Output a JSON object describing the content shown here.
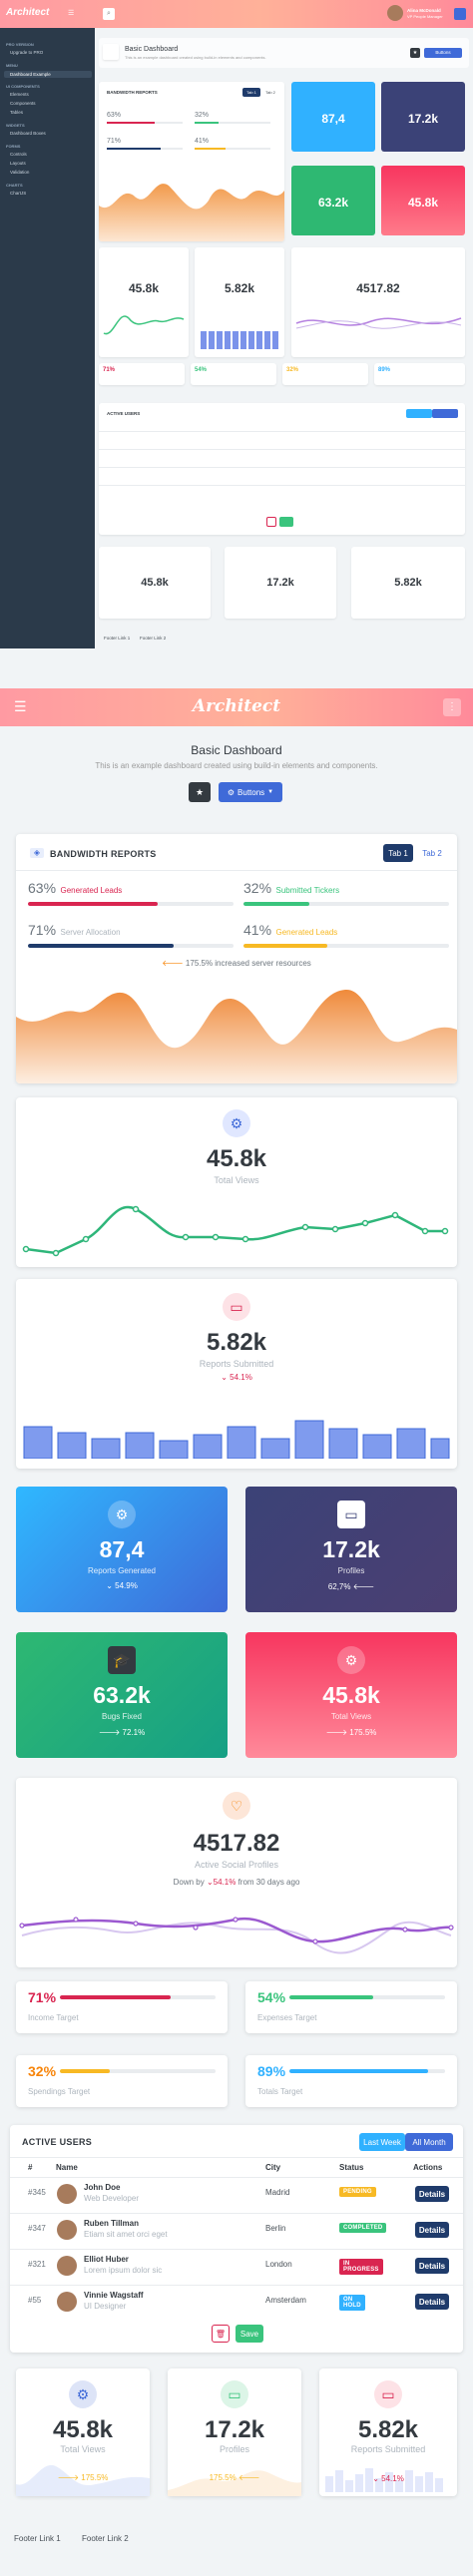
{
  "brand": {
    "logo": "Architect"
  },
  "page": {
    "title": "Basic Dashboard",
    "subtitle": "This is an example dashboard created using build-in elements and components.",
    "buttons_label": "Buttons"
  },
  "desktop": {
    "user_name": "Alina McDonald",
    "user_role": "VP People Manager",
    "sidebar": [
      {
        "type": "section",
        "label": "PRO VERSION"
      },
      {
        "type": "item",
        "label": "Upgrade to PRO"
      },
      {
        "type": "section",
        "label": "MENU"
      },
      {
        "type": "item",
        "label": "Dashboard Example",
        "active": true
      },
      {
        "type": "section",
        "label": "UI COMPONENTS"
      },
      {
        "type": "item",
        "label": "Elements"
      },
      {
        "type": "item",
        "label": "Components"
      },
      {
        "type": "item",
        "label": "Tables"
      },
      {
        "type": "section",
        "label": "WIDGETS"
      },
      {
        "type": "item",
        "label": "Dashboard Boxes"
      },
      {
        "type": "section",
        "label": "FORMS"
      },
      {
        "type": "item",
        "label": "Controls"
      },
      {
        "type": "item",
        "label": "Layouts"
      },
      {
        "type": "item",
        "label": "Validation"
      },
      {
        "type": "section",
        "label": "CHARTS"
      },
      {
        "type": "item",
        "label": "ChartJS"
      }
    ]
  },
  "bandwidth": {
    "title": "BANDWIDTH REPORTS",
    "tabs": [
      "Tab 1",
      "Tab 2"
    ],
    "stats": [
      {
        "pct": "63%",
        "label": "Generated Leads",
        "value": 63,
        "color": "#d92550"
      },
      {
        "pct": "32%",
        "label": "Submitted Tickers",
        "value": 32,
        "color": "#3ac47d"
      },
      {
        "pct": "71%",
        "label": "Server Allocation",
        "value": 71,
        "color": "#1f3b6b"
      },
      {
        "pct": "41%",
        "label": "Generated Leads",
        "value": 41,
        "color": "#f7b924"
      }
    ],
    "note": "175.5% increased server resources"
  },
  "total_views": {
    "value": "45.8k",
    "label": "Total Views"
  },
  "reports": {
    "value": "5.82k",
    "label": "Reports Submitted",
    "change": "54.1%"
  },
  "tiles": [
    {
      "value": "87,4",
      "label": "Reports Generated",
      "change": "54.9%"
    },
    {
      "value": "17.2k",
      "label": "Profiles",
      "change": "62,7%"
    },
    {
      "value": "63.2k",
      "label": "Bugs Fixed",
      "change": "72.1%"
    },
    {
      "value": "45.8k",
      "label": "Total Views",
      "change": "175.5%"
    }
  ],
  "social": {
    "value": "4517.82",
    "label": "Active Social Profiles",
    "down_prefix": "Down by",
    "down_pct": "54.1%",
    "down_suffix": "from 30 days ago"
  },
  "targets": [
    {
      "pct": "71%",
      "label": "Income Target",
      "value": 71,
      "color": "#d92550"
    },
    {
      "pct": "54%",
      "label": "Expenses Target",
      "value": 54,
      "color": "#3ac47d"
    },
    {
      "pct": "32%",
      "label": "Spendings Target",
      "value": 32,
      "color": "#f7b924"
    },
    {
      "pct": "89%",
      "label": "Totals Target",
      "value": 89,
      "color": "#30b1ff"
    }
  ],
  "users": {
    "title": "ACTIVE USERS",
    "tabs": [
      "Last Week",
      "All Month"
    ],
    "columns": [
      "#",
      "Name",
      "City",
      "Status",
      "Actions"
    ],
    "rows": [
      {
        "id": "#345",
        "name": "John Doe",
        "role": "Web Developer",
        "city": "Madrid",
        "status": "PENDING",
        "status_color": "#f7b924"
      },
      {
        "id": "#347",
        "name": "Ruben Tillman",
        "role": "Etiam sit amet orci eget",
        "city": "Berlin",
        "status": "COMPLETED",
        "status_color": "#3ac47d"
      },
      {
        "id": "#321",
        "name": "Elliot Huber",
        "role": "Lorem ipsum dolor sic",
        "city": "London",
        "status": "IN PROGRESS",
        "status_color": "#d92550"
      },
      {
        "id": "#55",
        "name": "Vinnie Wagstaff",
        "role": "UI Designer",
        "city": "Amsterdam",
        "status": "ON HOLD",
        "status_color": "#30b1ff"
      }
    ],
    "action_label": "Details",
    "save_label": "Save"
  },
  "bottom": [
    {
      "value": "45.8k",
      "label": "Total Views",
      "change": "175.5%"
    },
    {
      "value": "17.2k",
      "label": "Profiles",
      "change": "175.5%"
    },
    {
      "value": "5.82k",
      "label": "Reports Submitted",
      "change": "54.1%"
    }
  ],
  "footer": [
    "Footer Link 1",
    "Footer Link 2"
  ],
  "colors": {
    "header_start": "#ff9aa2",
    "header_end": "#ff8a9a",
    "primary": "#3f6ad8",
    "dark": "#1f3b6b",
    "success": "#3ac47d",
    "danger": "#d92550",
    "warning": "#f7b924",
    "info": "#30b1ff"
  }
}
